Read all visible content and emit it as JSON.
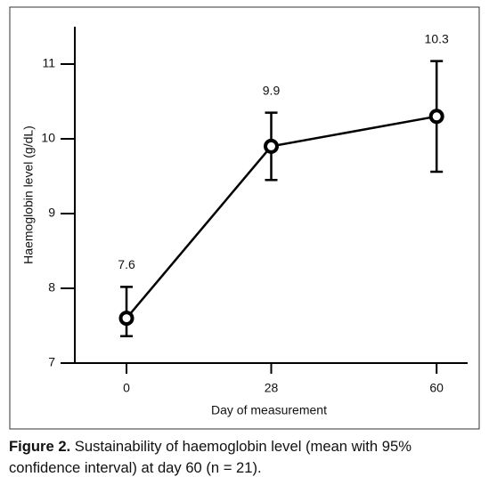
{
  "chart_data": {
    "type": "line",
    "x": [
      0,
      28,
      60
    ],
    "values": [
      7.6,
      9.9,
      10.3
    ],
    "lower": [
      7.36,
      9.45,
      9.56
    ],
    "upper": [
      8.02,
      10.35,
      11.04
    ],
    "color": "#000000",
    "xlim": [
      -10,
      66
    ],
    "xticks": [
      0,
      28,
      60
    ],
    "ylim": [
      7,
      11.5
    ],
    "yticks": [
      7,
      8,
      9,
      10,
      11
    ],
    "xlabel": "Day of measurement",
    "ylabel": "Haemoglobin level (g/dL)"
  },
  "caption": {
    "label": "Figure 2.",
    "text": "Sustainability of haemoglobin level (mean with 95% confidence interval) at day 60 (n = 21)."
  }
}
